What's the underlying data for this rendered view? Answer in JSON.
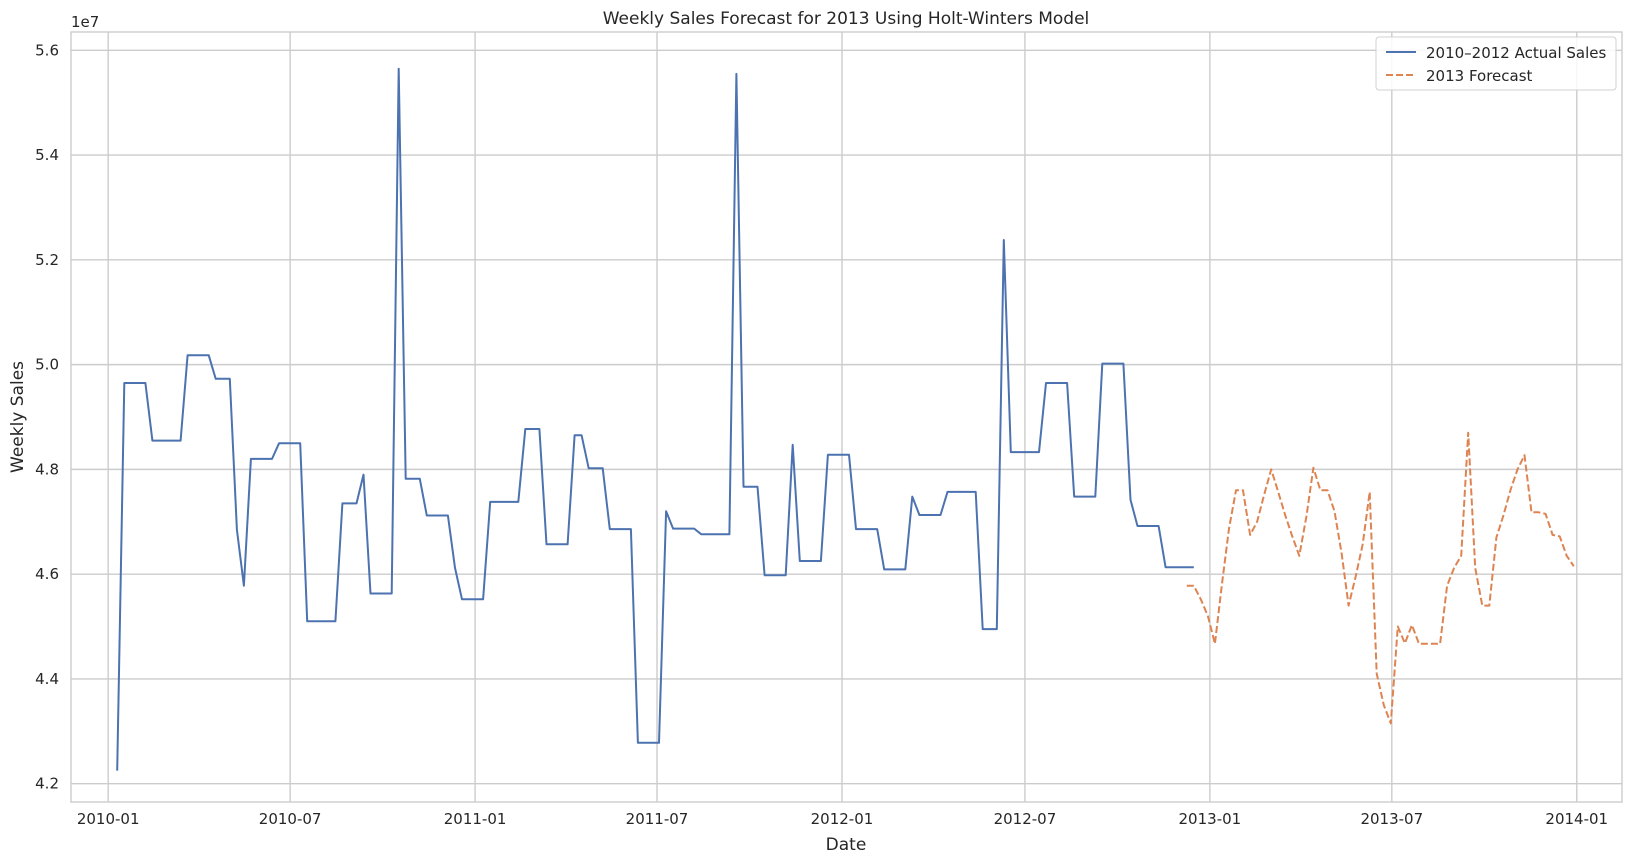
{
  "chart_data": {
    "type": "line",
    "title": "Weekly Sales Forecast for 2013 Using Holt-Winters Model",
    "xlabel": "Date",
    "ylabel": "Weekly Sales",
    "y_multiplier_label": "1e7",
    "xlim": [
      "2009-11-25",
      "2014-02-15"
    ],
    "ylim": [
      4.165,
      5.635
    ],
    "x_ticks": [
      "2010-01",
      "2010-07",
      "2011-01",
      "2011-07",
      "2012-01",
      "2012-07",
      "2013-01",
      "2013-07",
      "2014-01"
    ],
    "y_ticks": [
      "4.2",
      "4.4",
      "4.6",
      "4.8",
      "5.0",
      "5.2",
      "5.4",
      "5.6"
    ],
    "grid": true,
    "legend_position": "top-right",
    "series": [
      {
        "name": "2010–2012 Actual Sales",
        "color": "#4c72b0",
        "style": "solid",
        "points": [
          [
            "2010-01-10",
            4.225
          ],
          [
            "2010-01-17",
            4.965
          ],
          [
            "2010-01-24",
            4.965
          ],
          [
            "2010-01-31",
            4.965
          ],
          [
            "2010-02-07",
            4.965
          ],
          [
            "2010-02-14",
            4.855
          ],
          [
            "2010-02-21",
            4.855
          ],
          [
            "2010-02-28",
            4.855
          ],
          [
            "2010-03-07",
            4.855
          ],
          [
            "2010-03-14",
            4.855
          ],
          [
            "2010-03-21",
            5.018
          ],
          [
            "2010-03-28",
            5.018
          ],
          [
            "2010-04-04",
            5.018
          ],
          [
            "2010-04-11",
            5.018
          ],
          [
            "2010-04-18",
            4.973
          ],
          [
            "2010-04-25",
            4.973
          ],
          [
            "2010-05-02",
            4.973
          ],
          [
            "2010-05-09",
            4.685
          ],
          [
            "2010-05-16",
            4.578
          ],
          [
            "2010-05-23",
            4.82
          ],
          [
            "2010-05-30",
            4.82
          ],
          [
            "2010-06-06",
            4.82
          ],
          [
            "2010-06-13",
            4.82
          ],
          [
            "2010-06-20",
            4.85
          ],
          [
            "2010-06-27",
            4.85
          ],
          [
            "2010-07-04",
            4.85
          ],
          [
            "2010-07-11",
            4.85
          ],
          [
            "2010-07-18",
            4.51
          ],
          [
            "2010-07-25",
            4.51
          ],
          [
            "2010-08-01",
            4.51
          ],
          [
            "2010-08-08",
            4.51
          ],
          [
            "2010-08-15",
            4.51
          ],
          [
            "2010-08-22",
            4.735
          ],
          [
            "2010-08-29",
            4.735
          ],
          [
            "2010-09-05",
            4.735
          ],
          [
            "2010-09-12",
            4.79
          ],
          [
            "2010-09-19",
            4.563
          ],
          [
            "2010-09-26",
            4.563
          ],
          [
            "2010-10-03",
            4.563
          ],
          [
            "2010-10-10",
            4.563
          ],
          [
            "2010-10-17",
            5.565
          ],
          [
            "2010-10-24",
            4.782
          ],
          [
            "2010-10-31",
            4.782
          ],
          [
            "2010-11-07",
            4.782
          ],
          [
            "2010-11-14",
            4.712
          ],
          [
            "2010-11-21",
            4.712
          ],
          [
            "2010-11-28",
            4.712
          ],
          [
            "2010-12-05",
            4.712
          ],
          [
            "2010-12-12",
            4.612
          ],
          [
            "2010-12-19",
            4.552
          ],
          [
            "2010-12-26",
            4.552
          ],
          [
            "2011-01-02",
            4.552
          ],
          [
            "2011-01-09",
            4.552
          ],
          [
            "2011-01-16",
            4.738
          ],
          [
            "2011-01-23",
            4.738
          ],
          [
            "2011-01-30",
            4.738
          ],
          [
            "2011-02-06",
            4.738
          ],
          [
            "2011-02-13",
            4.738
          ],
          [
            "2011-02-20",
            4.877
          ],
          [
            "2011-02-27",
            4.877
          ],
          [
            "2011-03-06",
            4.877
          ],
          [
            "2011-03-13",
            4.657
          ],
          [
            "2011-03-20",
            4.657
          ],
          [
            "2011-03-27",
            4.657
          ],
          [
            "2011-04-03",
            4.657
          ],
          [
            "2011-04-10",
            4.865
          ],
          [
            "2011-04-17",
            4.865
          ],
          [
            "2011-04-24",
            4.802
          ],
          [
            "2011-05-01",
            4.802
          ],
          [
            "2011-05-08",
            4.802
          ],
          [
            "2011-05-15",
            4.686
          ],
          [
            "2011-05-22",
            4.686
          ],
          [
            "2011-05-29",
            4.686
          ],
          [
            "2011-06-05",
            4.686
          ],
          [
            "2011-06-12",
            4.278
          ],
          [
            "2011-06-19",
            4.278
          ],
          [
            "2011-06-26",
            4.278
          ],
          [
            "2011-07-03",
            4.278
          ],
          [
            "2011-07-10",
            4.72
          ],
          [
            "2011-07-17",
            4.687
          ],
          [
            "2011-07-24",
            4.687
          ],
          [
            "2011-07-31",
            4.687
          ],
          [
            "2011-08-07",
            4.687
          ],
          [
            "2011-08-14",
            4.676
          ],
          [
            "2011-08-21",
            4.676
          ],
          [
            "2011-08-28",
            4.676
          ],
          [
            "2011-09-04",
            4.676
          ],
          [
            "2011-09-11",
            4.676
          ],
          [
            "2011-09-18",
            5.555
          ],
          [
            "2011-09-25",
            4.767
          ],
          [
            "2011-10-02",
            4.767
          ],
          [
            "2011-10-09",
            4.767
          ],
          [
            "2011-10-16",
            4.598
          ],
          [
            "2011-10-23",
            4.598
          ],
          [
            "2011-10-30",
            4.598
          ],
          [
            "2011-11-06",
            4.598
          ],
          [
            "2011-11-13",
            4.847
          ],
          [
            "2011-11-20",
            4.625
          ],
          [
            "2011-11-27",
            4.625
          ],
          [
            "2011-12-04",
            4.625
          ],
          [
            "2011-12-11",
            4.625
          ],
          [
            "2011-12-18",
            4.828
          ],
          [
            "2011-12-25",
            4.828
          ],
          [
            "2012-01-01",
            4.828
          ],
          [
            "2012-01-08",
            4.828
          ],
          [
            "2012-01-15",
            4.686
          ],
          [
            "2012-01-22",
            4.686
          ],
          [
            "2012-01-29",
            4.686
          ],
          [
            "2012-02-05",
            4.686
          ],
          [
            "2012-02-12",
            4.609
          ],
          [
            "2012-02-19",
            4.609
          ],
          [
            "2012-02-26",
            4.609
          ],
          [
            "2012-03-04",
            4.609
          ],
          [
            "2012-03-11",
            4.748
          ],
          [
            "2012-03-18",
            4.713
          ],
          [
            "2012-03-25",
            4.713
          ],
          [
            "2012-04-01",
            4.713
          ],
          [
            "2012-04-08",
            4.713
          ],
          [
            "2012-04-15",
            4.757
          ],
          [
            "2012-04-22",
            4.757
          ],
          [
            "2012-04-29",
            4.757
          ],
          [
            "2012-05-06",
            4.757
          ],
          [
            "2012-05-13",
            4.757
          ],
          [
            "2012-05-20",
            4.495
          ],
          [
            "2012-05-27",
            4.495
          ],
          [
            "2012-06-03",
            4.495
          ],
          [
            "2012-06-10",
            5.238
          ],
          [
            "2012-06-17",
            4.833
          ],
          [
            "2012-06-24",
            4.833
          ],
          [
            "2012-07-01",
            4.833
          ],
          [
            "2012-07-08",
            4.833
          ],
          [
            "2012-07-15",
            4.833
          ],
          [
            "2012-07-22",
            4.965
          ],
          [
            "2012-07-29",
            4.965
          ],
          [
            "2012-08-05",
            4.965
          ],
          [
            "2012-08-12",
            4.965
          ],
          [
            "2012-08-19",
            4.748
          ],
          [
            "2012-08-26",
            4.748
          ],
          [
            "2012-09-02",
            4.748
          ],
          [
            "2012-09-09",
            4.748
          ],
          [
            "2012-09-16",
            5.002
          ],
          [
            "2012-09-23",
            5.002
          ],
          [
            "2012-09-30",
            5.002
          ],
          [
            "2012-10-07",
            5.002
          ],
          [
            "2012-10-14",
            4.742
          ],
          [
            "2012-10-21",
            4.692
          ],
          [
            "2012-10-28",
            4.692
          ],
          [
            "2012-11-04",
            4.692
          ],
          [
            "2012-11-11",
            4.692
          ],
          [
            "2012-11-18",
            4.613
          ],
          [
            "2012-11-25",
            4.613
          ],
          [
            "2012-12-02",
            4.613
          ],
          [
            "2012-12-09",
            4.613
          ],
          [
            "2012-12-16",
            4.613
          ]
        ]
      },
      {
        "name": "2013 Forecast",
        "color": "#dd8452",
        "style": "dashed",
        "points": [
          [
            "2012-12-09",
            4.578
          ],
          [
            "2012-12-16",
            4.578
          ],
          [
            "2012-12-23",
            4.552
          ],
          [
            "2012-12-30",
            4.52
          ],
          [
            "2013-01-06",
            4.467
          ],
          [
            "2013-01-13",
            4.58
          ],
          [
            "2013-01-20",
            4.687
          ],
          [
            "2013-01-27",
            4.76
          ],
          [
            "2013-02-03",
            4.76
          ],
          [
            "2013-02-10",
            4.675
          ],
          [
            "2013-02-17",
            4.7
          ],
          [
            "2013-02-24",
            4.752
          ],
          [
            "2013-03-03",
            4.8
          ],
          [
            "2013-03-10",
            4.757
          ],
          [
            "2013-03-17",
            4.712
          ],
          [
            "2013-03-24",
            4.672
          ],
          [
            "2013-03-31",
            4.635
          ],
          [
            "2013-04-07",
            4.71
          ],
          [
            "2013-04-14",
            4.803
          ],
          [
            "2013-04-21",
            4.76
          ],
          [
            "2013-04-28",
            4.76
          ],
          [
            "2013-05-05",
            4.72
          ],
          [
            "2013-05-12",
            4.64
          ],
          [
            "2013-05-19",
            4.54
          ],
          [
            "2013-05-26",
            4.595
          ],
          [
            "2013-06-02",
            4.657
          ],
          [
            "2013-06-09",
            4.757
          ],
          [
            "2013-06-16",
            4.41
          ],
          [
            "2013-06-23",
            4.35
          ],
          [
            "2013-06-30",
            4.315
          ],
          [
            "2013-07-07",
            4.5
          ],
          [
            "2013-07-14",
            4.468
          ],
          [
            "2013-07-21",
            4.503
          ],
          [
            "2013-07-28",
            4.467
          ],
          [
            "2013-08-04",
            4.467
          ],
          [
            "2013-08-11",
            4.467
          ],
          [
            "2013-08-18",
            4.467
          ],
          [
            "2013-08-25",
            4.578
          ],
          [
            "2013-09-01",
            4.612
          ],
          [
            "2013-09-08",
            4.635
          ],
          [
            "2013-09-15",
            4.87
          ],
          [
            "2013-09-22",
            4.612
          ],
          [
            "2013-09-29",
            4.54
          ],
          [
            "2013-10-06",
            4.54
          ],
          [
            "2013-10-13",
            4.67
          ],
          [
            "2013-10-20",
            4.712
          ],
          [
            "2013-10-27",
            4.76
          ],
          [
            "2013-11-03",
            4.8
          ],
          [
            "2013-11-10",
            4.827
          ],
          [
            "2013-11-17",
            4.718
          ],
          [
            "2013-11-24",
            4.718
          ],
          [
            "2013-12-01",
            4.715
          ],
          [
            "2013-12-08",
            4.675
          ],
          [
            "2013-12-15",
            4.672
          ],
          [
            "2013-12-22",
            4.635
          ],
          [
            "2013-12-29",
            4.615
          ]
        ]
      }
    ]
  }
}
